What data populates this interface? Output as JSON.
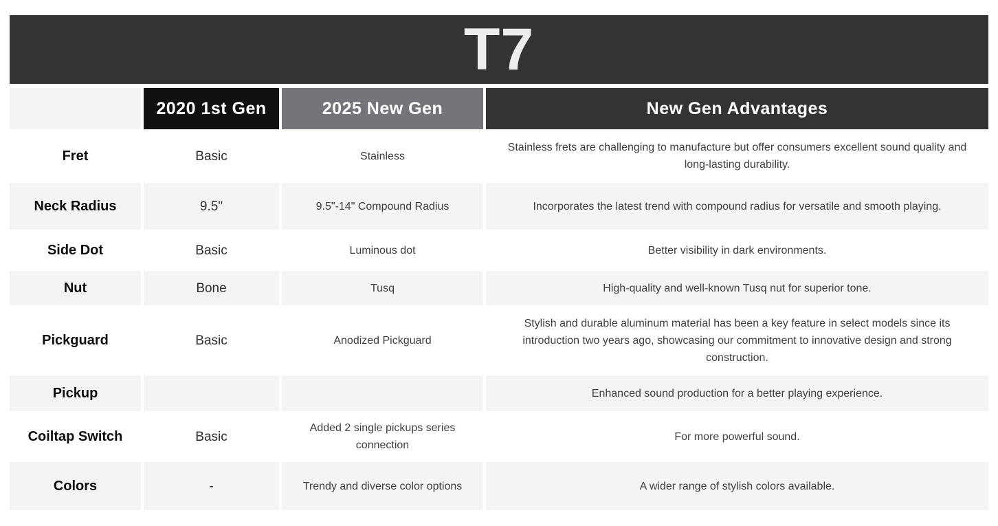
{
  "title": "T7",
  "columns": {
    "feature": "",
    "gen2020": "2020 1st Gen",
    "gen2025": "2025 New Gen",
    "advantages": "New Gen Advantages"
  },
  "colors": {
    "banner_bg": "#333333",
    "header_2020_bg": "#12100e",
    "header_2025_bg": "#75747b",
    "header_advantages_bg": "#333333",
    "header_text": "#ffffff",
    "row_alt_bg": "#f3f4f6",
    "body_text": "#3e3e3e",
    "feature_text": "#0d0d0d",
    "title_text": "#ededed"
  },
  "chart_data": {
    "type": "table",
    "title": "T7",
    "columns": [
      "",
      "2020 1st Gen",
      "2025 New Gen",
      "New Gen Advantages"
    ],
    "note": "feature comparison table between guitar generations"
  },
  "rows": [
    {
      "feature": "Fret",
      "gen2020": "Basic",
      "gen2025": "Stainless",
      "advantage": "Stainless frets are challenging to manufacture but offer consumers excellent sound quality and long-lasting durability."
    },
    {
      "feature": "Neck Radius",
      "gen2020": "9.5\"",
      "gen2025": "9.5\"-14\" Compound Radius",
      "advantage": "Incorporates the latest trend with compound radius for versatile and smooth playing."
    },
    {
      "feature": "Side Dot",
      "gen2020": "Basic",
      "gen2025": "Luminous dot",
      "advantage": "Better visibility in dark environments."
    },
    {
      "feature": "Nut",
      "gen2020": "Bone",
      "gen2025": "Tusq",
      "advantage": "High-quality and well-known Tusq nut for superior tone."
    },
    {
      "feature": "Pickguard",
      "gen2020": "Basic",
      "gen2025": "Anodized Pickguard",
      "advantage": "Stylish and durable aluminum material has been a key feature in select models since its introduction two years ago, showcasing our commitment to innovative design and strong construction."
    },
    {
      "feature": "Pickup",
      "gen2020": "",
      "gen2025": "",
      "advantage": "Enhanced sound production for a better playing experience."
    },
    {
      "feature": "Coiltap Switch",
      "gen2020": "Basic",
      "gen2025": "Added 2 single pickups series connection",
      "advantage": "For more powerful sound."
    },
    {
      "feature": "Colors",
      "gen2020": "-",
      "gen2025": "Trendy and diverse color options",
      "advantage": "A wider range of stylish colors available."
    }
  ]
}
